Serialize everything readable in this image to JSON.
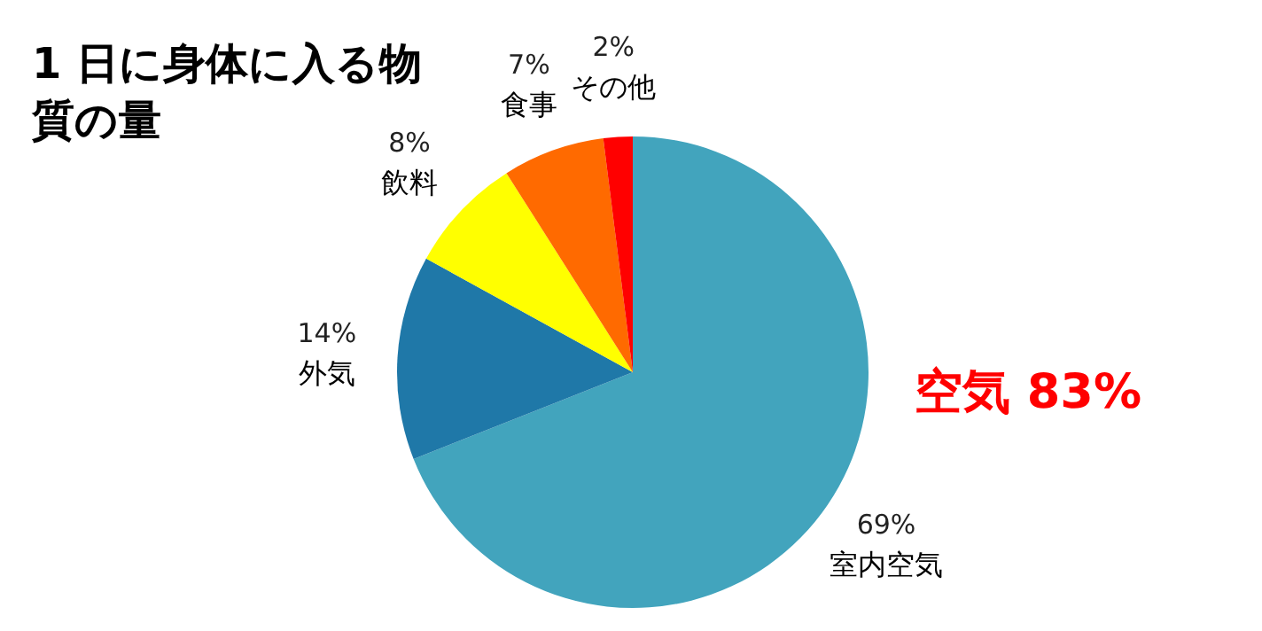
{
  "chart_data": {
    "type": "pie",
    "title": "1 日に身体に入る物質の量",
    "categories": [
      "室内空気",
      "外気",
      "飲料",
      "食事",
      "その他"
    ],
    "values": [
      69,
      14,
      8,
      7,
      2
    ],
    "value_labels": [
      "69%",
      "14%",
      "8%",
      "7%",
      "2%"
    ],
    "colors": [
      "#42a4bd",
      "#1f78a8",
      "#ffff00",
      "#ff6a00",
      "#ff0000"
    ],
    "annotations": [
      "空気 83%"
    ],
    "legend": false
  }
}
